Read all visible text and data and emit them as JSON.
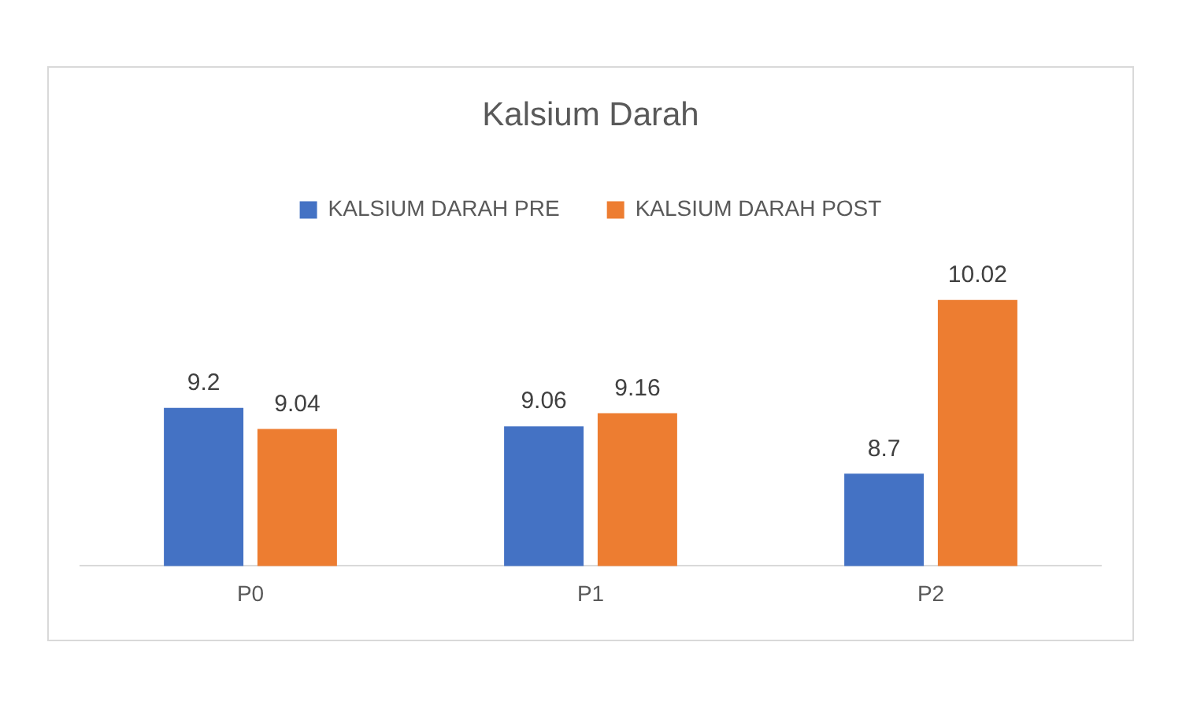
{
  "chart_data": {
    "type": "bar",
    "title": "Kalsium Darah",
    "categories": [
      "P0",
      "P1",
      "P2"
    ],
    "series": [
      {
        "name": "KALSIUM DARAH PRE",
        "color": "#4472c4",
        "values": [
          9.2,
          9.06,
          8.7
        ]
      },
      {
        "name": "KALSIUM DARAH POST",
        "color": "#ed7d31",
        "values": [
          9.04,
          9.16,
          10.02
        ]
      }
    ],
    "tick_labels": "x",
    "data_labels": true,
    "grid": false,
    "legend": "top"
  }
}
